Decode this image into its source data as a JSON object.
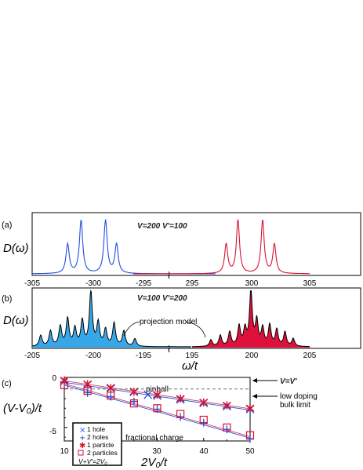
{
  "colors": {
    "blue": "#1f4fe0",
    "red": "#d8122f",
    "fill_blue": "#37a7e8",
    "fill_red": "#e0103c",
    "mid_red": "#d44060",
    "gray": "#777777"
  },
  "chart_data": [
    {
      "panel_label": "(a)",
      "type": "line",
      "ylabel": "D(ω)",
      "annotation": "V=200  V'=100",
      "xlim_left": [
        -305,
        -290
      ],
      "xlim_right": [
        290,
        305
      ],
      "xticks": [
        "-305",
        "-300",
        "-295",
        "295",
        "300",
        "305"
      ],
      "series": [
        {
          "color": "blue",
          "x": [
            -302.1,
            -301.0,
            -299.0,
            -298.1
          ],
          "values": [
            0.55,
            1.0,
            1.0,
            0.55
          ]
        },
        {
          "color": "red",
          "x": [
            297.9,
            298.9,
            301.0,
            302.0
          ],
          "values": [
            0.55,
            1.0,
            1.0,
            0.55
          ]
        }
      ]
    },
    {
      "panel_label": "(b)",
      "type": "area",
      "ylabel": "D(ω)",
      "xlabel": "ω/t",
      "annotation": "V=100  V'=200",
      "callout": "projection model",
      "xlim_left": [
        -205,
        -192
      ],
      "xlim_right": [
        195,
        205
      ],
      "xticks": [
        "-205",
        "-200",
        "-195",
        "195",
        "200",
        "205"
      ],
      "series": [
        {
          "color": "blue",
          "x": [
            -204.3,
            -203.5,
            -202.7,
            -202.1,
            -201.5,
            -200.9,
            -200.2,
            -199.6,
            -199.0,
            -198.3,
            -197.5,
            -196.6
          ],
          "values": [
            0.2,
            0.28,
            0.36,
            0.5,
            0.32,
            0.46,
            1.0,
            0.42,
            0.3,
            0.42,
            0.28,
            0.14
          ]
        },
        {
          "color": "red",
          "x": [
            196.6,
            197.4,
            198.2,
            199.0,
            199.5,
            200.0,
            200.5,
            201.0,
            201.6,
            202.2,
            202.9,
            203.6
          ],
          "values": [
            0.12,
            0.2,
            0.26,
            0.36,
            0.3,
            1.0,
            0.45,
            0.32,
            0.38,
            0.3,
            0.26,
            0.14
          ]
        }
      ]
    },
    {
      "panel_label": "(c)",
      "type": "scatter",
      "xlabel": "2V₀/t",
      "ylabel": "(V-V₀)/t",
      "xlim": [
        10,
        50
      ],
      "ylim": [
        -6.4,
        0.2
      ],
      "xticks": [
        "10",
        "20",
        "30",
        "40",
        "50"
      ],
      "yticks": [
        "0",
        "-5"
      ],
      "annotations": {
        "pinball": "pinball",
        "fractional": "fractional  charge",
        "v_eq": "V=V'",
        "low_doping": "low doping",
        "bulk_limit": "bulk limit"
      },
      "legend": {
        "items": [
          "1 hole",
          "2 holes",
          "1 particle",
          "2 particles"
        ],
        "footer": "V+V'=2V₀"
      },
      "series": [
        {
          "name": "1 hole",
          "marker": "x",
          "color": "blue",
          "x": [
            10,
            15,
            20,
            25,
            28,
            30,
            35,
            40,
            45,
            50
          ],
          "values": [
            -0.2,
            -0.55,
            -0.9,
            -1.3,
            -1.6,
            -1.7,
            -2.1,
            -2.45,
            -2.8,
            -3.1
          ]
        },
        {
          "name": "2 holes",
          "marker": "plus",
          "color": "blue",
          "x": [
            10,
            15,
            20,
            25,
            30,
            35,
            40,
            45,
            50
          ],
          "values": [
            -0.3,
            -1.4,
            -1.8,
            -2.3,
            -3.1,
            -3.9,
            -4.5,
            -5.2,
            -6.2
          ]
        },
        {
          "name": "1 particle",
          "marker": "star",
          "color": "red",
          "x": [
            10,
            15,
            20,
            25,
            30,
            35,
            40,
            45,
            50
          ],
          "values": [
            -0.1,
            -0.5,
            -0.9,
            -1.3,
            -1.6,
            -2.0,
            -2.4,
            -2.7,
            -3.0
          ]
        },
        {
          "name": "2 particles",
          "marker": "square",
          "color": "red",
          "x": [
            10,
            15,
            20,
            25,
            30,
            35,
            40,
            45,
            50
          ],
          "values": [
            -0.6,
            -1.2,
            -1.7,
            -2.5,
            -3.0,
            -3.6,
            -4.2,
            -5.0,
            -5.8
          ]
        }
      ],
      "fit_lines": [
        {
          "color": "blue",
          "x": [
            10,
            50
          ],
          "values": [
            -0.3,
            -3.2
          ]
        },
        {
          "color": "red",
          "x": [
            10,
            50
          ],
          "values": [
            -0.15,
            -3.05
          ]
        },
        {
          "color": "blue",
          "x": [
            10,
            50
          ],
          "values": [
            -0.6,
            -6.1
          ]
        },
        {
          "color": "red",
          "x": [
            10,
            50
          ],
          "values": [
            -0.45,
            -5.95
          ]
        }
      ],
      "reference_line": {
        "y": -1.0,
        "style": "dashed"
      }
    }
  ]
}
